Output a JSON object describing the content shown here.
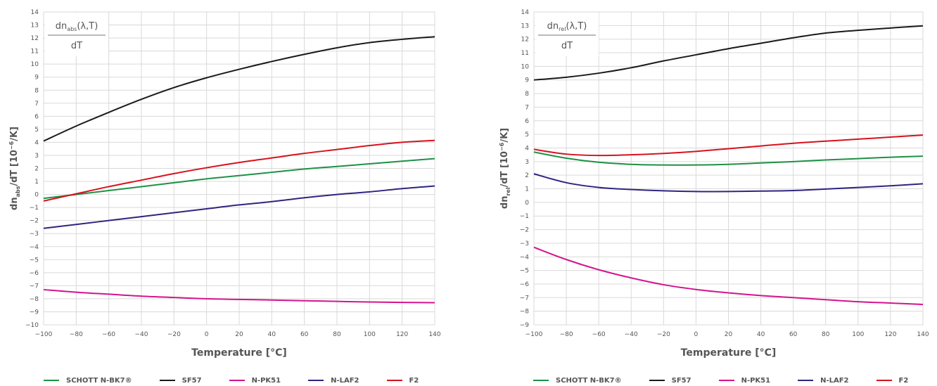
{
  "xlabel": "Temperature [°C]",
  "legend": [
    {
      "name": "SCHOTT N-BK7®",
      "color": "#1d9145"
    },
    {
      "name": "SF57",
      "color": "#1a1a1a"
    },
    {
      "name": "N-PK51",
      "color": "#d4148c"
    },
    {
      "name": "N-LAF2",
      "color": "#2e2580"
    },
    {
      "name": "F2",
      "color": "#d7121d"
    }
  ],
  "chart_data": [
    {
      "type": "line",
      "ylabel": "dn_abs/dT [10⁻⁶/K]",
      "ylabel_parts": {
        "main": "dn",
        "sub": "abs",
        "rest": "/dT [10",
        "sup": "−6",
        "end": "/K]"
      },
      "box_formula": {
        "top": "dn",
        "sub": "abs",
        "args": "(λ,T)",
        "bottom": "dT"
      },
      "xlim": [
        -100,
        140
      ],
      "ylim": [
        -10,
        14
      ],
      "xticks": [
        "−100",
        "−80",
        "−60",
        "−40",
        "−20",
        "0",
        "20",
        "40",
        "60",
        "80",
        "100",
        "120",
        "140"
      ],
      "yticks": [
        "−10",
        "−9",
        "−8",
        "−7",
        "−6",
        "−5",
        "−4",
        "−3",
        "−2",
        "−1",
        "0",
        "1",
        "2",
        "3",
        "4",
        "5",
        "6",
        "7",
        "8",
        "9",
        "10",
        "11",
        "12",
        "13",
        "14"
      ],
      "grid": true,
      "x": [
        -100,
        -80,
        -60,
        -40,
        -20,
        0,
        20,
        40,
        60,
        80,
        100,
        120,
        140
      ],
      "series": [
        {
          "name": "SCHOTT N-BK7®",
          "color": "#1d9145",
          "values": [
            -0.3,
            0.0,
            0.3,
            0.6,
            0.9,
            1.2,
            1.45,
            1.7,
            1.95,
            2.15,
            2.35,
            2.55,
            2.75
          ]
        },
        {
          "name": "SF57",
          "color": "#1a1a1a",
          "values": [
            4.1,
            5.25,
            6.3,
            7.3,
            8.2,
            8.95,
            9.6,
            10.2,
            10.75,
            11.25,
            11.65,
            11.9,
            12.1
          ]
        },
        {
          "name": "N-PK51",
          "color": "#d4148c",
          "values": [
            -7.3,
            -7.5,
            -7.65,
            -7.8,
            -7.9,
            -8.0,
            -8.05,
            -8.1,
            -8.15,
            -8.2,
            -8.25,
            -8.28,
            -8.3
          ]
        },
        {
          "name": "N-LAF2",
          "color": "#2e2580",
          "values": [
            -2.6,
            -2.3,
            -2.0,
            -1.7,
            -1.4,
            -1.1,
            -0.8,
            -0.55,
            -0.25,
            0.0,
            0.2,
            0.45,
            0.65
          ]
        },
        {
          "name": "F2",
          "color": "#d7121d",
          "values": [
            -0.5,
            0.05,
            0.6,
            1.1,
            1.6,
            2.05,
            2.45,
            2.8,
            3.15,
            3.45,
            3.75,
            4.0,
            4.15
          ]
        }
      ]
    },
    {
      "type": "line",
      "ylabel": "dn_rel/dT [10⁻⁶/K]",
      "ylabel_parts": {
        "main": "dn",
        "sub": "rel",
        "rest": "/dT [10",
        "sup": "−6",
        "end": "/K]"
      },
      "box_formula": {
        "top": "dn",
        "sub": "rel",
        "args": "(λ,T)",
        "bottom": "dT"
      },
      "xlim": [
        -100,
        140
      ],
      "ylim": [
        -9,
        14
      ],
      "xticks": [
        "−100",
        "−80",
        "−60",
        "−40",
        "−20",
        "0",
        "20",
        "40",
        "60",
        "80",
        "100",
        "120",
        "140"
      ],
      "yticks": [
        "−9",
        "−8",
        "−7",
        "−6",
        "−5",
        "−4",
        "−3",
        "−2",
        "−1",
        "0",
        "1",
        "2",
        "3",
        "4",
        "5",
        "6",
        "7",
        "8",
        "9",
        "10",
        "11",
        "12",
        "13",
        "14"
      ],
      "grid": true,
      "x": [
        -100,
        -80,
        -60,
        -40,
        -20,
        0,
        20,
        40,
        60,
        80,
        100,
        120,
        140
      ],
      "series": [
        {
          "name": "SCHOTT N-BK7®",
          "color": "#1d9145",
          "values": [
            3.7,
            3.25,
            2.95,
            2.8,
            2.75,
            2.75,
            2.8,
            2.9,
            3.0,
            3.12,
            3.22,
            3.32,
            3.4
          ]
        },
        {
          "name": "SF57",
          "color": "#1a1a1a",
          "values": [
            9.0,
            9.2,
            9.5,
            9.9,
            10.4,
            10.85,
            11.3,
            11.7,
            12.1,
            12.45,
            12.65,
            12.82,
            12.98
          ]
        },
        {
          "name": "N-PK51",
          "color": "#d4148c",
          "values": [
            -3.3,
            -4.2,
            -4.95,
            -5.55,
            -6.05,
            -6.4,
            -6.65,
            -6.85,
            -7.0,
            -7.15,
            -7.3,
            -7.4,
            -7.5
          ]
        },
        {
          "name": "N-LAF2",
          "color": "#2e2580",
          "values": [
            2.1,
            1.45,
            1.1,
            0.95,
            0.85,
            0.8,
            0.8,
            0.83,
            0.87,
            0.98,
            1.1,
            1.22,
            1.37
          ]
        },
        {
          "name": "F2",
          "color": "#d7121d",
          "values": [
            3.9,
            3.55,
            3.45,
            3.5,
            3.6,
            3.75,
            3.95,
            4.15,
            4.35,
            4.5,
            4.65,
            4.8,
            4.95
          ]
        }
      ]
    }
  ]
}
